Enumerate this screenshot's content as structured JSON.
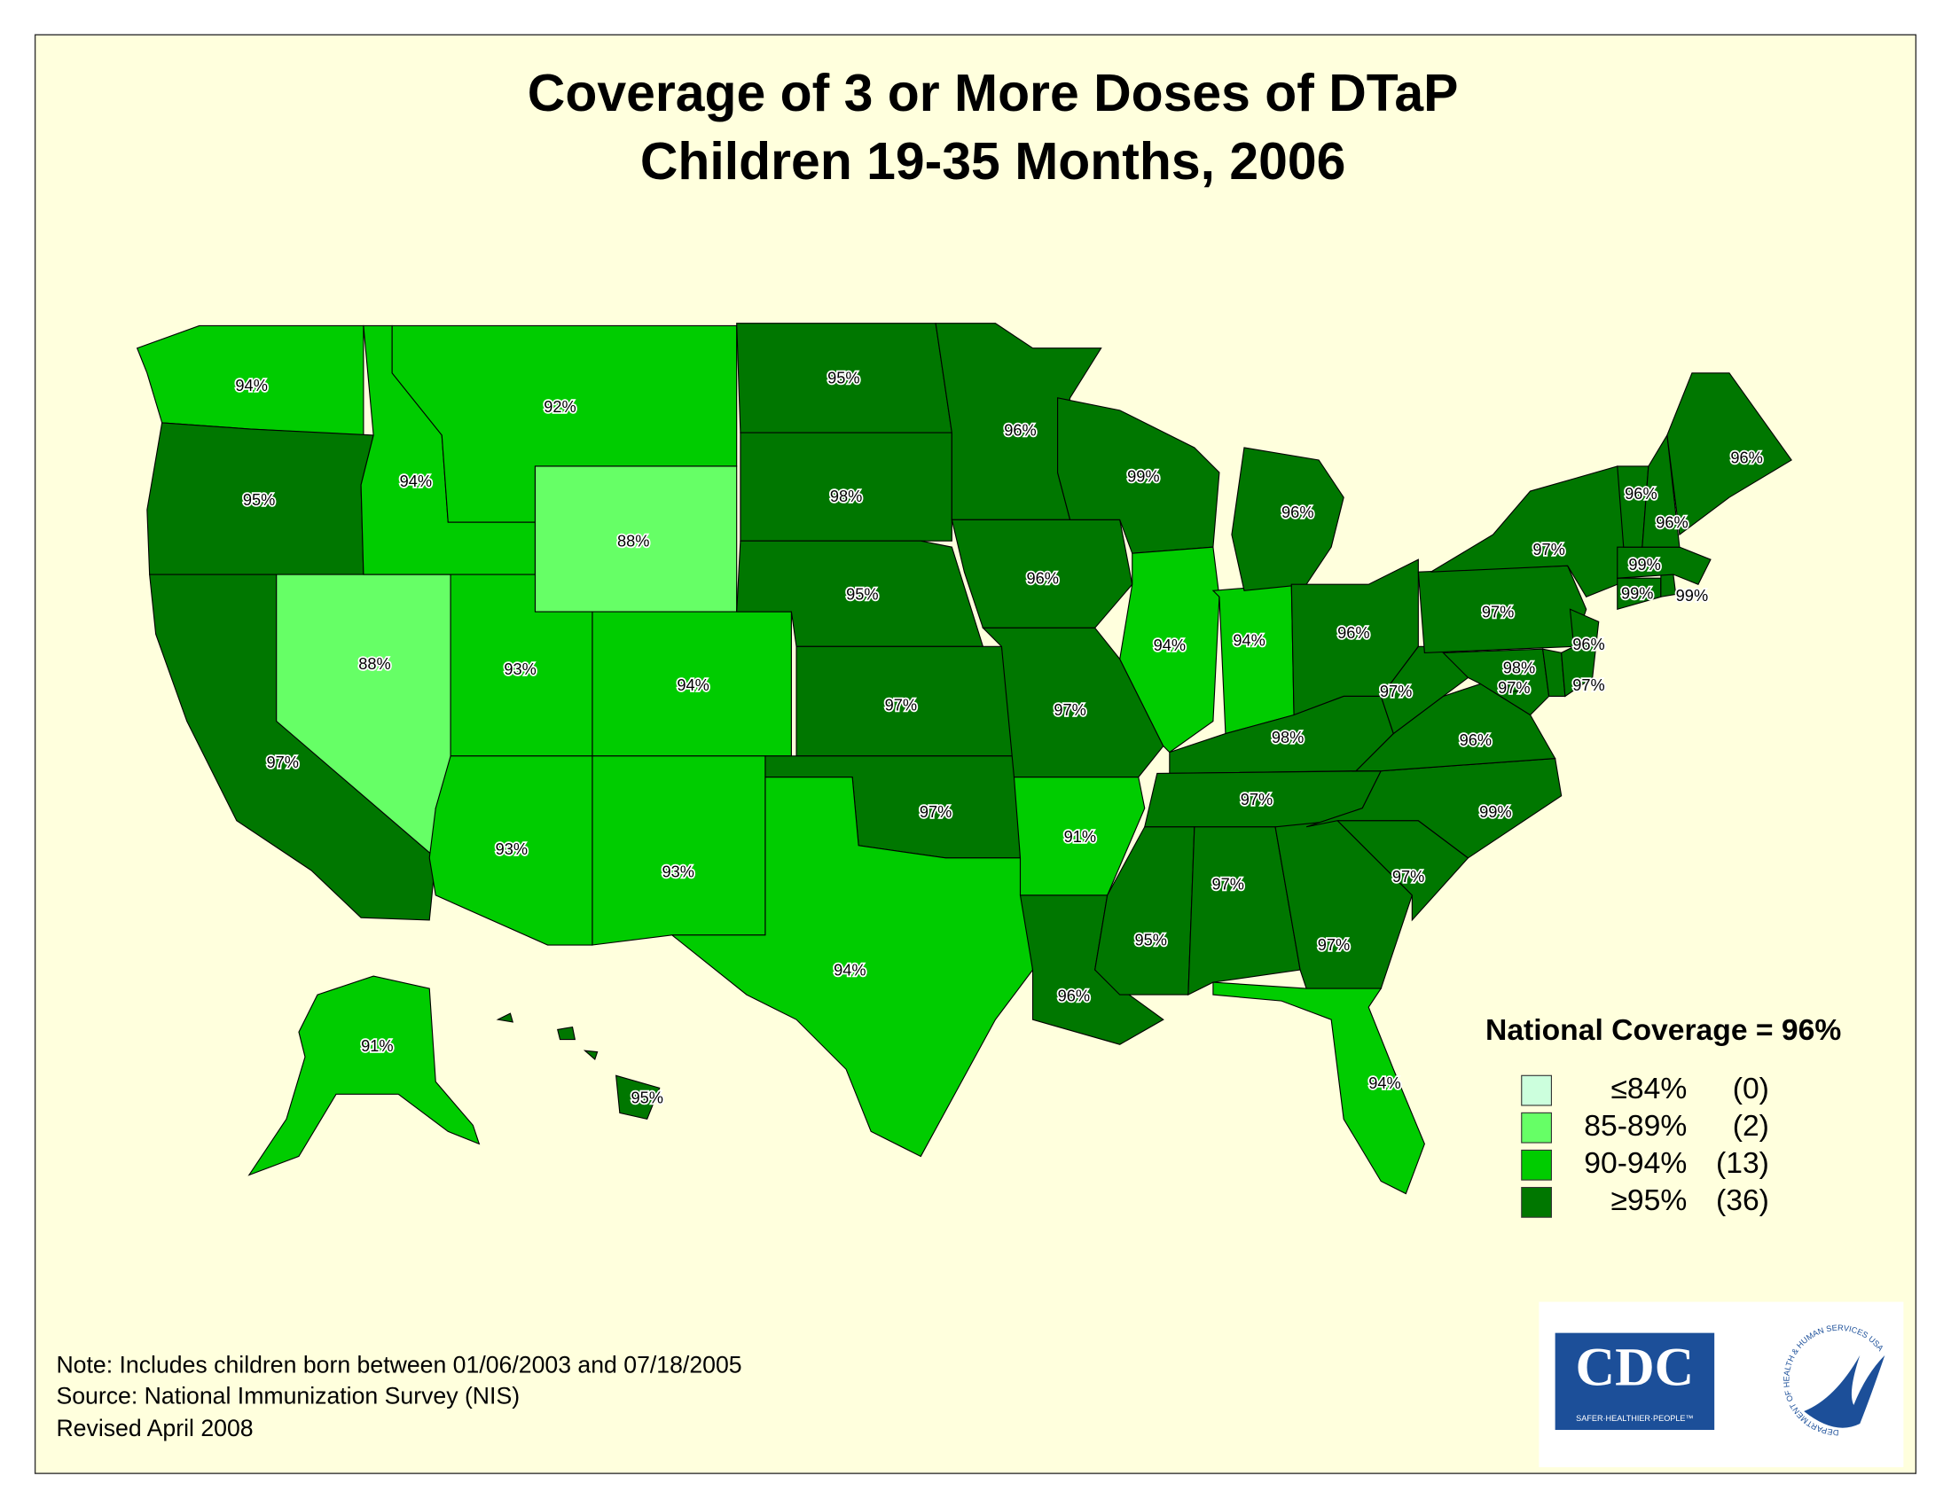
{
  "title": {
    "line1": "Coverage of 3 or More Doses of DTaP",
    "line2": "Children 19-35 Months, 2006"
  },
  "states": [
    {
      "value": 94,
      "value_label": "94%"
    },
    {
      "value": 95,
      "value_label": "95%"
    },
    {
      "value": 97,
      "value_label": "97%"
    },
    {
      "value": 88,
      "value_label": "88%"
    },
    {
      "value": 94,
      "value_label": "94%"
    },
    {
      "value": 92,
      "value_label": "92%"
    },
    {
      "value": 88,
      "value_label": "88%"
    },
    {
      "value": 93,
      "value_label": "93%"
    },
    {
      "value": 94,
      "value_label": "94%"
    },
    {
      "value": 93,
      "value_label": "93%"
    },
    {
      "value": 93,
      "value_label": "93%"
    },
    {
      "value": 95,
      "value_label": "95%"
    },
    {
      "value": 98,
      "value_label": "98%"
    },
    {
      "value": 95,
      "value_label": "95%"
    },
    {
      "value": 97,
      "value_label": "97%"
    },
    {
      "value": 97,
      "value_label": "97%"
    },
    {
      "value": 94,
      "value_label": "94%"
    },
    {
      "value": 96,
      "value_label": "96%"
    },
    {
      "value": 96,
      "value_label": "96%"
    },
    {
      "value": 97,
      "value_label": "97%"
    },
    {
      "value": 91,
      "value_label": "91%"
    },
    {
      "value": 96,
      "value_label": "96%"
    },
    {
      "value": 99,
      "value_label": "99%"
    },
    {
      "value": 94,
      "value_label": "94%"
    },
    {
      "value": 94,
      "value_label": "94%"
    },
    {
      "value": 96,
      "value_label": "96%"
    },
    {
      "value": 96,
      "value_label": "96%"
    },
    {
      "value": 98,
      "value_label": "98%"
    },
    {
      "value": 97,
      "value_label": "97%"
    },
    {
      "value": 95,
      "value_label": "95%"
    },
    {
      "value": 97,
      "value_label": "97%"
    },
    {
      "value": 97,
      "value_label": "97%"
    },
    {
      "value": 94,
      "value_label": "94%"
    },
    {
      "value": 97,
      "value_label": "97%"
    },
    {
      "value": 99,
      "value_label": "99%"
    },
    {
      "value": 96,
      "value_label": "96%"
    },
    {
      "value": 97,
      "value_label": "97%"
    },
    {
      "value": 97,
      "value_label": "97%"
    },
    {
      "value": 97,
      "value_label": "97%"
    },
    {
      "value": 98,
      "value_label": "98%"
    },
    {
      "value": 97,
      "value_label": "97%"
    },
    {
      "value": 96,
      "value_label": "96%"
    },
    {
      "value": 99,
      "value_label": "99%"
    },
    {
      "value": 99,
      "value_label": "99%"
    },
    {
      "value": 99,
      "value_label": "99%"
    },
    {
      "value": 96,
      "value_label": "96%"
    },
    {
      "value": 96,
      "value_label": "96%"
    },
    {
      "value": 96,
      "value_label": "96%"
    },
    {
      "value": 91,
      "value_label": "91%"
    },
    {
      "value": 95,
      "value_label": "95%"
    },
    {
      "value": 97,
      "value_label": "97%"
    }
  ],
  "legend": {
    "title": "National Coverage = 96%",
    "bins": [
      {
        "label": "≤84%",
        "count": "(0)",
        "color": "#ccffdd",
        "max": 84
      },
      {
        "label": "85-89%",
        "count": "(2)",
        "color": "#66ff66",
        "min": 85,
        "max": 89
      },
      {
        "label": "90-94%",
        "count": "(13)",
        "color": "#00cc00",
        "min": 90,
        "max": 94
      },
      {
        "label": "≥95%",
        "count": "(36)",
        "color": "#007700",
        "min": 95
      }
    ]
  },
  "notes": [
    "Note: Includes children born between 01/06/2003 and 07/18/2005",
    "Source: National Immunization Survey (NIS)",
    "Revised April 2008"
  ],
  "logos": {
    "cdc": "CDC",
    "cdc_tagline": "SAFER·HEALTHIER·PEOPLE™",
    "hhs": "DEPARTMENT OF HEALTH & HUMAN SERVICES USA"
  }
}
